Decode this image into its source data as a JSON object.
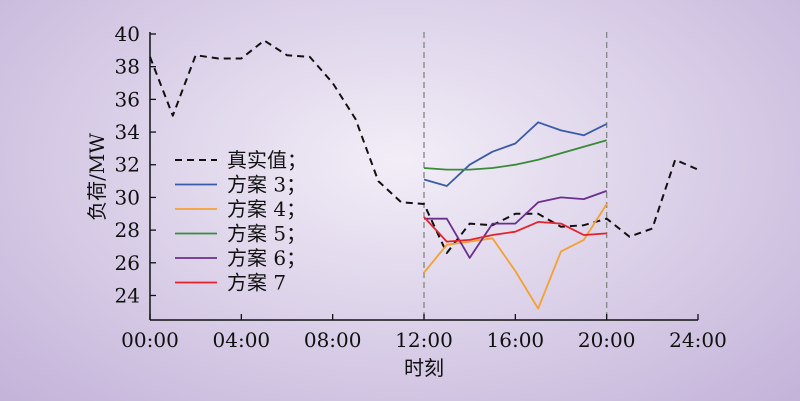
{
  "chart_data": {
    "type": "line",
    "xlabel": "时刻",
    "ylabel": "负荷/MW",
    "xlim": [
      0,
      24
    ],
    "ylim": [
      22.5,
      40
    ],
    "x_ticks": [
      0,
      4,
      8,
      12,
      16,
      20,
      24
    ],
    "x_tick_labels": [
      "00:00",
      "04:00",
      "08:00",
      "12:00",
      "16:00",
      "20:00",
      "24:00"
    ],
    "y_ticks": [
      24,
      26,
      28,
      30,
      32,
      34,
      36,
      38,
      40
    ],
    "y_tick_labels": [
      "24",
      "26",
      "28",
      "30",
      "32",
      "34",
      "36",
      "38",
      "40"
    ],
    "vlines": [
      12,
      20
    ],
    "grid": false,
    "legend_position": "left",
    "series": [
      {
        "name": "真实值；",
        "color": "#111111",
        "dash": true,
        "x": [
          0,
          1,
          2,
          3,
          4,
          5,
          6,
          7,
          8,
          9,
          10,
          11,
          12,
          13,
          14,
          15,
          16,
          17,
          18,
          19,
          20,
          21,
          22,
          23,
          24
        ],
        "values": [
          38.6,
          35.0,
          38.7,
          38.5,
          38.5,
          39.6,
          38.7,
          38.6,
          37.0,
          34.8,
          31.0,
          29.7,
          29.6,
          26.6,
          28.4,
          28.3,
          29.0,
          29.0,
          28.2,
          28.3,
          28.7,
          27.6,
          28.1,
          32.3,
          31.7
        ]
      },
      {
        "name": "方案 3；",
        "color": "#3a5ba8",
        "dash": false,
        "x": [
          12,
          13,
          14,
          15,
          16,
          17,
          18,
          19,
          20
        ],
        "values": [
          31.1,
          30.7,
          32.0,
          32.8,
          33.3,
          34.6,
          34.1,
          33.8,
          34.5
        ]
      },
      {
        "name": "方案 4；",
        "color": "#f5a031",
        "dash": false,
        "x": [
          12,
          13,
          14,
          15,
          16,
          17,
          18,
          19,
          20
        ],
        "values": [
          25.4,
          27.1,
          27.3,
          27.5,
          25.5,
          23.2,
          26.7,
          27.4,
          29.6
        ]
      },
      {
        "name": "方案 5；",
        "color": "#3a8a3a",
        "dash": false,
        "x": [
          12,
          13,
          14,
          15,
          16,
          17,
          18,
          19,
          20
        ],
        "values": [
          31.8,
          31.7,
          31.7,
          31.8,
          32.0,
          32.3,
          32.7,
          33.1,
          33.5
        ]
      },
      {
        "name": "方案 6；",
        "color": "#6a2f8e",
        "dash": false,
        "x": [
          12,
          13,
          14,
          15,
          16,
          17,
          18,
          19,
          20
        ],
        "values": [
          28.7,
          28.7,
          26.3,
          28.4,
          28.4,
          29.7,
          30.0,
          29.9,
          30.4
        ]
      },
      {
        "name": "方案 7",
        "color": "#e8202a",
        "dash": false,
        "x": [
          12,
          13,
          14,
          15,
          16,
          17,
          18,
          19,
          20
        ],
        "values": [
          28.8,
          27.3,
          27.4,
          27.7,
          27.9,
          28.5,
          28.4,
          27.7,
          27.8
        ]
      }
    ]
  }
}
